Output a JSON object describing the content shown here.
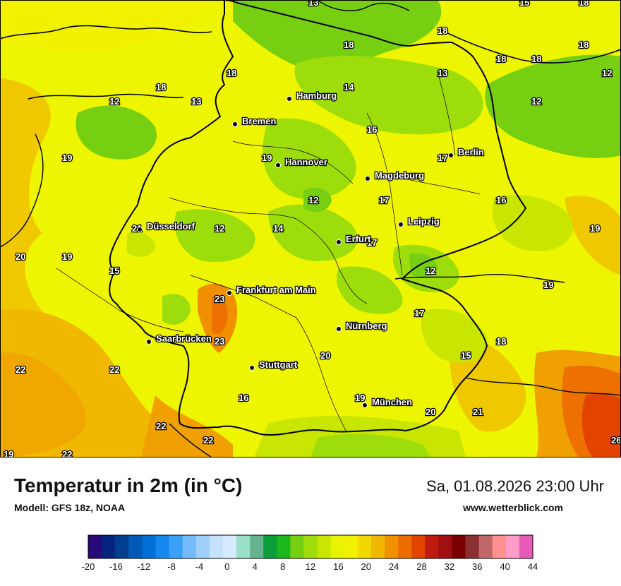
{
  "title": "Temperatur in 2m (in °C)",
  "model": "Modell: GFS 18z, NOAA",
  "datetime": "Sa, 01.08.2026 23:00 Uhr",
  "website": "www.wetterblick.com",
  "colors": {
    "border": "#000000",
    "sea": "#f2f200",
    "land_base": "#e4ef00"
  },
  "cities": [
    {
      "name": "Hamburg"
    },
    {
      "name": "Bremen"
    },
    {
      "name": "Berlin"
    },
    {
      "name": "Hannover"
    },
    {
      "name": "Magdeburg"
    },
    {
      "name": "Leipzig"
    },
    {
      "name": "Düsseldorf"
    },
    {
      "name": "Erfurt"
    },
    {
      "name": "Frankfurt am Main"
    },
    {
      "name": "Nürnberg"
    },
    {
      "name": "Saarbrücken"
    },
    {
      "name": "Stuttgart"
    },
    {
      "name": "München"
    }
  ],
  "temperature_labels": [
    "13",
    "15",
    "18",
    "18",
    "18",
    "18",
    "18",
    "18",
    "12",
    "13",
    "14",
    "12",
    "18",
    "13",
    "18",
    "16",
    "17",
    "19",
    "12",
    "17",
    "14",
    "16",
    "12",
    "19",
    "19",
    "21",
    "20",
    "19",
    "15",
    "12",
    "17",
    "12",
    "23",
    "19",
    "17",
    "15",
    "23",
    "18",
    "20",
    "22",
    "22",
    "16",
    "19",
    "20",
    "21",
    "22",
    "22",
    "19",
    "22",
    "26"
  ],
  "legend": {
    "ticks": [
      "-20",
      "-16",
      "-12",
      "-8",
      "-4",
      "0",
      "4",
      "8",
      "12",
      "16",
      "20",
      "24",
      "28",
      "32",
      "36",
      "40",
      "44"
    ],
    "colors": [
      "#2a0a7a",
      "#04247e",
      "#003f8f",
      "#0059b6",
      "#0070d6",
      "#1689f0",
      "#3aa0f8",
      "#73bbfa",
      "#a0cffb",
      "#c4e1fd",
      "#d6ebfe",
      "#9be0c8",
      "#66b38f",
      "#0d9e3c",
      "#1ab81a",
      "#77cf12",
      "#9ddd0b",
      "#c8e600",
      "#e7f300",
      "#f2f200",
      "#f0d800",
      "#f0b800",
      "#f09200",
      "#ee6d00",
      "#e24400",
      "#bf1a10",
      "#a01010",
      "#7a0000",
      "#8a3030",
      "#c06868",
      "#ff9090",
      "#ff9cc8",
      "#e85ab8"
    ]
  }
}
